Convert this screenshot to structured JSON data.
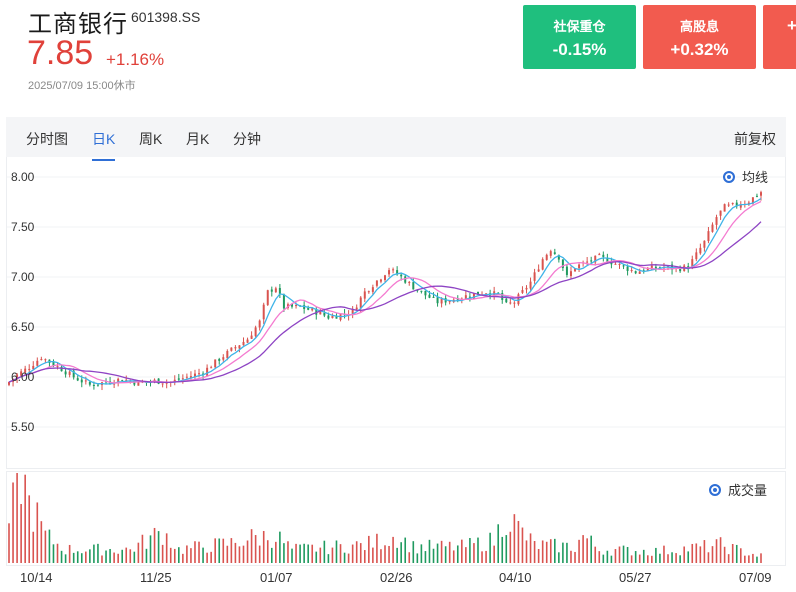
{
  "stock": {
    "name": "工商银行",
    "code": "601398.SS",
    "price": "7.85",
    "change_pct": "+1.16%",
    "timestamp": "2025/07/09 15:00休市"
  },
  "sectors": [
    {
      "name": "社保重仓",
      "value": "-0.15%",
      "color": "#1fbf7e"
    },
    {
      "name": "高股息",
      "value": "+0.32%",
      "color": "#f25b4f"
    },
    {
      "name": "",
      "value": "+",
      "color": "#f25b4f"
    }
  ],
  "tabs": [
    "分时图",
    "日K",
    "周K",
    "月K",
    "分钟"
  ],
  "active_tab": "日K",
  "adjust_label": "前复权",
  "price_legend": "均线",
  "volume_legend": "成交量",
  "colors": {
    "up": "#d9534f",
    "down": "#1f9a5f",
    "ma5": "#3fb4e8",
    "ma10": "#f47bd0",
    "ma20": "#8e44c4",
    "accent": "#2f6fd6"
  },
  "chart_data": {
    "type": "candlestick",
    "y_ticks": [
      "8.00",
      "7.50",
      "7.00",
      "6.50",
      "6.00",
      "5.50"
    ],
    "ylim": [
      5.4,
      8.0
    ],
    "x_ticks": [
      "10/14",
      "11/25",
      "01/07",
      "02/26",
      "04/10",
      "05/27",
      "07/09"
    ],
    "close_anchors": [
      [
        0,
        5.95
      ],
      [
        2,
        6.02
      ],
      [
        5,
        6.1
      ],
      [
        8,
        6.2
      ],
      [
        10,
        6.15
      ],
      [
        13,
        6.08
      ],
      [
        16,
        6.0
      ],
      [
        20,
        5.92
      ],
      [
        24,
        5.95
      ],
      [
        28,
        5.98
      ],
      [
        32,
        5.94
      ],
      [
        36,
        5.96
      ],
      [
        40,
        5.95
      ],
      [
        44,
        6.0
      ],
      [
        48,
        6.05
      ],
      [
        52,
        6.18
      ],
      [
        56,
        6.3
      ],
      [
        59,
        6.38
      ],
      [
        62,
        6.55
      ],
      [
        64,
        6.85
      ],
      [
        66,
        6.9
      ],
      [
        68,
        6.7
      ],
      [
        72,
        6.7
      ],
      [
        76,
        6.65
      ],
      [
        79,
        6.6
      ],
      [
        82,
        6.62
      ],
      [
        85,
        6.66
      ],
      [
        88,
        6.85
      ],
      [
        92,
        7.0
      ],
      [
        94,
        7.08
      ],
      [
        97,
        7.0
      ],
      [
        100,
        6.9
      ],
      [
        103,
        6.82
      ],
      [
        106,
        6.75
      ],
      [
        110,
        6.78
      ],
      [
        114,
        6.82
      ],
      [
        118,
        6.85
      ],
      [
        121,
        6.82
      ],
      [
        123,
        6.72
      ],
      [
        125,
        6.75
      ],
      [
        129,
        6.95
      ],
      [
        132,
        7.18
      ],
      [
        134,
        7.28
      ],
      [
        136,
        7.2
      ],
      [
        138,
        7.0
      ],
      [
        140,
        7.1
      ],
      [
        143,
        7.15
      ],
      [
        146,
        7.2
      ],
      [
        149,
        7.15
      ],
      [
        152,
        7.1
      ],
      [
        155,
        7.05
      ],
      [
        158,
        7.08
      ],
      [
        162,
        7.1
      ],
      [
        165,
        7.08
      ],
      [
        168,
        7.1
      ],
      [
        172,
        7.35
      ],
      [
        175,
        7.6
      ],
      [
        177,
        7.7
      ],
      [
        180,
        7.72
      ],
      [
        183,
        7.76
      ],
      [
        186,
        7.85
      ]
    ],
    "volume_profile": [
      [
        0,
        0.45
      ],
      [
        2,
        0.8
      ],
      [
        3,
        1.0
      ],
      [
        5,
        0.65
      ],
      [
        7,
        0.5
      ],
      [
        9,
        0.3
      ],
      [
        14,
        0.15
      ],
      [
        30,
        0.15
      ],
      [
        38,
        0.35
      ],
      [
        42,
        0.15
      ],
      [
        55,
        0.22
      ],
      [
        60,
        0.28
      ],
      [
        66,
        0.3
      ],
      [
        70,
        0.15
      ],
      [
        88,
        0.2
      ],
      [
        96,
        0.3
      ],
      [
        100,
        0.18
      ],
      [
        112,
        0.18
      ],
      [
        120,
        0.25
      ],
      [
        123,
        0.55
      ],
      [
        126,
        0.38
      ],
      [
        130,
        0.2
      ],
      [
        140,
        0.18
      ],
      [
        142,
        0.3
      ],
      [
        146,
        0.15
      ],
      [
        160,
        0.13
      ],
      [
        170,
        0.17
      ],
      [
        176,
        0.2
      ],
      [
        182,
        0.12
      ],
      [
        186,
        0.08
      ]
    ],
    "series": [
      {
        "name": "MA5",
        "window": 5
      },
      {
        "name": "MA10",
        "window": 10
      },
      {
        "name": "MA20",
        "window": 20
      }
    ]
  }
}
